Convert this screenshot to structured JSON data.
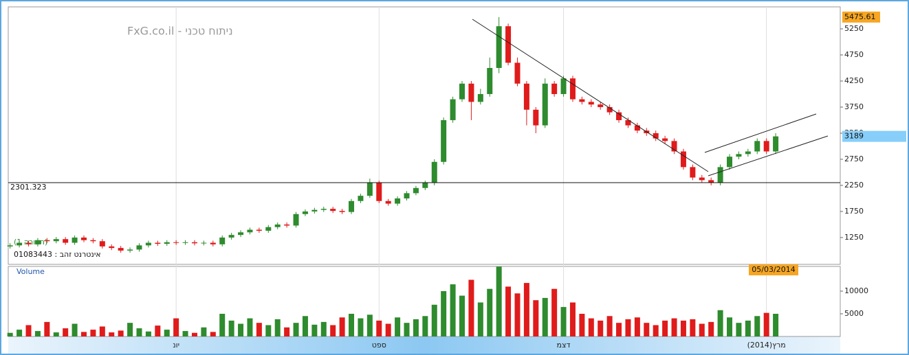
{
  "chart_data": [
    {
      "type": "candlestick",
      "title": "ניתוח טכני - FxG.co.il",
      "pattern_label": "(תצורה 1)",
      "symbol_label": "אינטרנט זהב : 01083443",
      "up_color": "#2e8b2e",
      "down_color": "#e01b1b",
      "xlim": [
        -0.2,
        90
      ],
      "ylim": [
        736,
        5671
      ],
      "yticks": [
        1250,
        1750,
        2250,
        2750,
        3250,
        3750,
        4250,
        4750,
        5250
      ],
      "grid": "x",
      "hline": 2301.323,
      "max_price": 5475.61,
      "last_price": 3189,
      "open": [
        1080,
        1100,
        1150,
        1120,
        1200,
        1180,
        1220,
        1150,
        1250,
        1200,
        1180,
        1080,
        1050,
        1000,
        1020,
        1100,
        1150,
        1130,
        1160,
        1150,
        1160,
        1140,
        1150,
        1120,
        1250,
        1300,
        1350,
        1400,
        1380,
        1450,
        1500,
        1480,
        1700,
        1750,
        1780,
        1800,
        1760,
        1740,
        1950,
        2050,
        2300,
        1950,
        1900,
        2000,
        2100,
        2200,
        2300,
        2700,
        3500,
        3900,
        4200,
        3850,
        4000,
        4500,
        5300,
        4600,
        4200,
        3700,
        3400,
        4200,
        4000,
        4300,
        3900,
        3850,
        3800,
        3750,
        3650,
        3500,
        3400,
        3300,
        3250,
        3150,
        3100,
        2900,
        2600,
        2400,
        2350,
        2300,
        2600,
        2800,
        2850,
        2900,
        3100,
        2900
      ],
      "high": [
        1140,
        1190,
        1190,
        1240,
        1240,
        1260,
        1260,
        1290,
        1290,
        1240,
        1220,
        1120,
        1090,
        1060,
        1140,
        1190,
        1190,
        1200,
        1200,
        1200,
        1200,
        1190,
        1190,
        1290,
        1340,
        1390,
        1440,
        1440,
        1490,
        1540,
        1540,
        1740,
        1790,
        1820,
        1840,
        1840,
        1800,
        1990,
        2090,
        2380,
        2340,
        1990,
        2040,
        2140,
        2240,
        2340,
        2750,
        3550,
        3950,
        4250,
        4250,
        4100,
        4700,
        5475.61,
        5350,
        4700,
        4250,
        3750,
        4300,
        4250,
        4350,
        4350,
        3950,
        3900,
        3850,
        3800,
        3700,
        3550,
        3450,
        3350,
        3300,
        3200,
        3150,
        2950,
        2650,
        2450,
        2400,
        2650,
        2850,
        2900,
        2950,
        3150,
        3150,
        3250
      ],
      "low": [
        1040,
        1060,
        1080,
        1080,
        1140,
        1140,
        1110,
        1110,
        1160,
        1140,
        1040,
        1010,
        960,
        960,
        980,
        1060,
        1090,
        1090,
        1110,
        1110,
        1100,
        1100,
        1080,
        1080,
        1210,
        1260,
        1310,
        1340,
        1340,
        1410,
        1440,
        1440,
        1660,
        1710,
        1740,
        1720,
        1700,
        1700,
        1910,
        2010,
        1910,
        1860,
        1860,
        1960,
        2060,
        2160,
        2250,
        2650,
        3450,
        3850,
        3500,
        3800,
        3950,
        4400,
        4550,
        4150,
        3400,
        3250,
        3350,
        3950,
        3950,
        3850,
        3800,
        3750,
        3700,
        3600,
        3450,
        3350,
        3250,
        3200,
        3100,
        3050,
        2850,
        2550,
        2350,
        2300,
        2250,
        2250,
        2550,
        2750,
        2800,
        2850,
        2850,
        2850
      ],
      "close": [
        1100,
        1150,
        1120,
        1200,
        1180,
        1220,
        1150,
        1250,
        1200,
        1180,
        1080,
        1050,
        1000,
        1020,
        1100,
        1150,
        1130,
        1160,
        1150,
        1160,
        1140,
        1150,
        1120,
        1250,
        1300,
        1350,
        1400,
        1380,
        1450,
        1500,
        1480,
        1700,
        1750,
        1780,
        1800,
        1760,
        1740,
        1950,
        2050,
        2300,
        1950,
        1900,
        2000,
        2100,
        2200,
        2300,
        2700,
        3500,
        3900,
        4200,
        3850,
        4000,
        4500,
        5300,
        4600,
        4200,
        3700,
        3400,
        4200,
        4000,
        4300,
        3900,
        3850,
        3800,
        3750,
        3650,
        3500,
        3400,
        3300,
        3250,
        3150,
        3100,
        2900,
        2600,
        2400,
        2350,
        2300,
        2600,
        2800,
        2850,
        2900,
        3100,
        2900,
        3189
      ]
    },
    {
      "type": "volume",
      "title": "Volume",
      "cursor_date": "05/03/2014",
      "xlim": [
        -0.2,
        90
      ],
      "ylim": [
        0,
        15450
      ],
      "yticks": [
        5000,
        10000
      ],
      "xticks": [
        {
          "value": 18,
          "label": "יונ"
        },
        {
          "value": 40,
          "label": "ספט"
        },
        {
          "value": 60,
          "label": "דצמ"
        },
        {
          "value": 82,
          "label": "מרץ(2014)"
        }
      ],
      "values": [
        800,
        1500,
        2500,
        1200,
        3200,
        900,
        1800,
        2800,
        1000,
        1500,
        2200,
        900,
        1300,
        3000,
        1800,
        1100,
        2400,
        1500,
        4000,
        1200,
        800,
        2000,
        1000,
        5000,
        3500,
        2800,
        4000,
        3000,
        2500,
        3800,
        2000,
        3000,
        4500,
        2600,
        3200,
        2500,
        4200,
        5000,
        4000,
        4800,
        3500,
        2800,
        4200,
        3000,
        3800,
        4500,
        7000,
        10000,
        11500,
        9000,
        12500,
        7500,
        10500,
        15400,
        11000,
        9500,
        11800,
        8000,
        8500,
        10500,
        6500,
        7500,
        5000,
        4000,
        3500,
        4500,
        3000,
        3800,
        4200,
        3000,
        2500,
        3500,
        4000,
        3500,
        3800,
        2800,
        3200,
        5800,
        4200,
        3000,
        3500,
        4500,
        5200,
        5000
      ]
    }
  ]
}
